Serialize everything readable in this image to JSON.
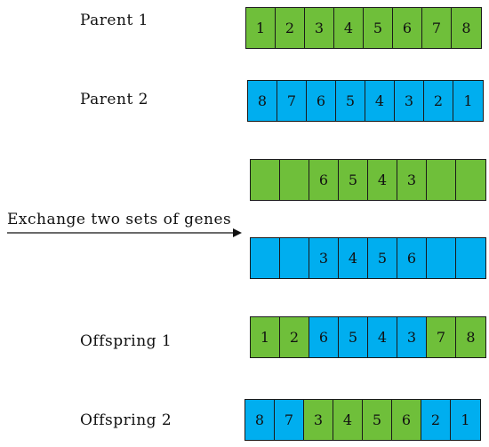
{
  "colors": {
    "green": "#6fbf3a",
    "blue": "#00aeef",
    "text": "#111111"
  },
  "labels": {
    "parent1": "Parent 1",
    "parent2": "Parent 2",
    "exchange": "Exchange two sets of genes",
    "offspring1": "Offspring 1",
    "offspring2": "Offspring 2"
  },
  "rows": {
    "parent1": {
      "values": [
        "1",
        "2",
        "3",
        "4",
        "5",
        "6",
        "7",
        "8"
      ],
      "colors": [
        "green",
        "green",
        "green",
        "green",
        "green",
        "green",
        "green",
        "green"
      ]
    },
    "parent2": {
      "values": [
        "8",
        "7",
        "6",
        "5",
        "4",
        "3",
        "2",
        "1"
      ],
      "colors": [
        "blue",
        "blue",
        "blue",
        "blue",
        "blue",
        "blue",
        "blue",
        "blue"
      ]
    },
    "exchange_green": {
      "values": [
        "",
        "",
        "6",
        "5",
        "4",
        "3",
        "",
        ""
      ],
      "colors": [
        "green",
        "green",
        "green",
        "green",
        "green",
        "green",
        "green",
        "green"
      ]
    },
    "exchange_blue": {
      "values": [
        "",
        "",
        "3",
        "4",
        "5",
        "6",
        "",
        ""
      ],
      "colors": [
        "blue",
        "blue",
        "blue",
        "blue",
        "blue",
        "blue",
        "blue",
        "blue"
      ]
    },
    "offspring1": {
      "values": [
        "1",
        "2",
        "6",
        "5",
        "4",
        "3",
        "7",
        "8"
      ],
      "colors": [
        "green",
        "green",
        "blue",
        "blue",
        "blue",
        "blue",
        "green",
        "green"
      ]
    },
    "offspring2": {
      "values": [
        "8",
        "7",
        "3",
        "4",
        "5",
        "6",
        "2",
        "1"
      ],
      "colors": [
        "blue",
        "blue",
        "green",
        "green",
        "green",
        "green",
        "blue",
        "blue"
      ]
    }
  }
}
